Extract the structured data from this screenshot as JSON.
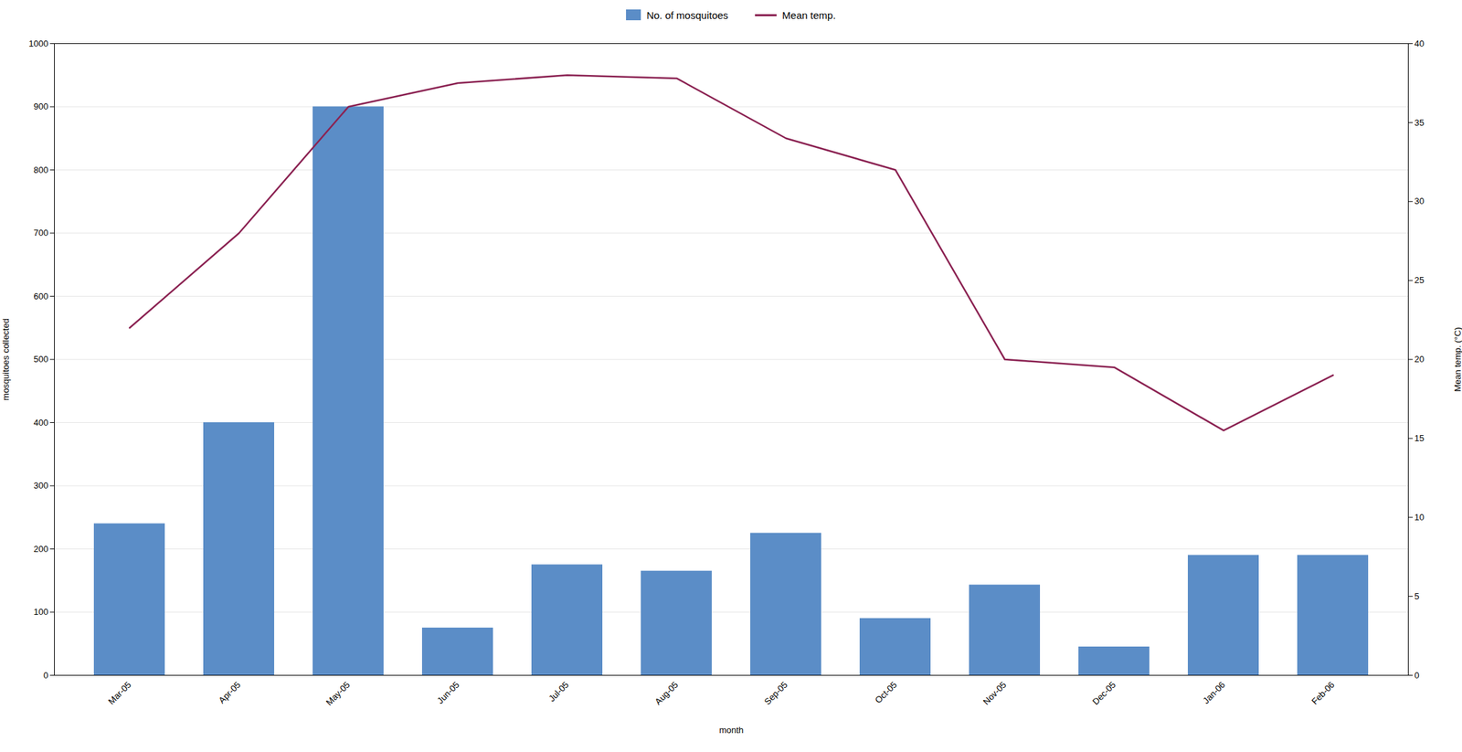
{
  "chart_data": {
    "type": "bar",
    "xlabel": "month",
    "ylabel": "mosquitoes collected",
    "y2label": "Mean temp. (°C)",
    "categories": [
      "Mar-05",
      "Apr-05",
      "May-05",
      "Jun-05",
      "Jul-05",
      "Aug-05",
      "Sep-05",
      "Oct-05",
      "Nov-05",
      "Dec-05",
      "Jan-06",
      "Feb-06"
    ],
    "series": [
      {
        "name": "No. of mosquitoes",
        "type": "bar",
        "color": "#5b8dc7",
        "values": [
          240,
          400,
          900,
          75,
          175,
          165,
          225,
          90,
          143,
          45,
          190,
          190
        ]
      },
      {
        "name": "Mean temp.",
        "type": "line",
        "color": "#8b2252",
        "axis": "y2",
        "values": [
          22,
          28,
          36,
          37.5,
          38,
          37.8,
          34,
          32,
          20,
          19.5,
          15.5,
          19
        ]
      }
    ],
    "ylim": [
      0,
      1000
    ],
    "yticks": [
      0,
      100,
      200,
      300,
      400,
      500,
      600,
      700,
      800,
      900,
      1000
    ],
    "y2lim": [
      0,
      40
    ],
    "y2ticks": [
      0,
      5,
      10,
      15,
      20,
      25,
      30,
      35,
      40
    ],
    "grid": true,
    "legend": "top"
  }
}
